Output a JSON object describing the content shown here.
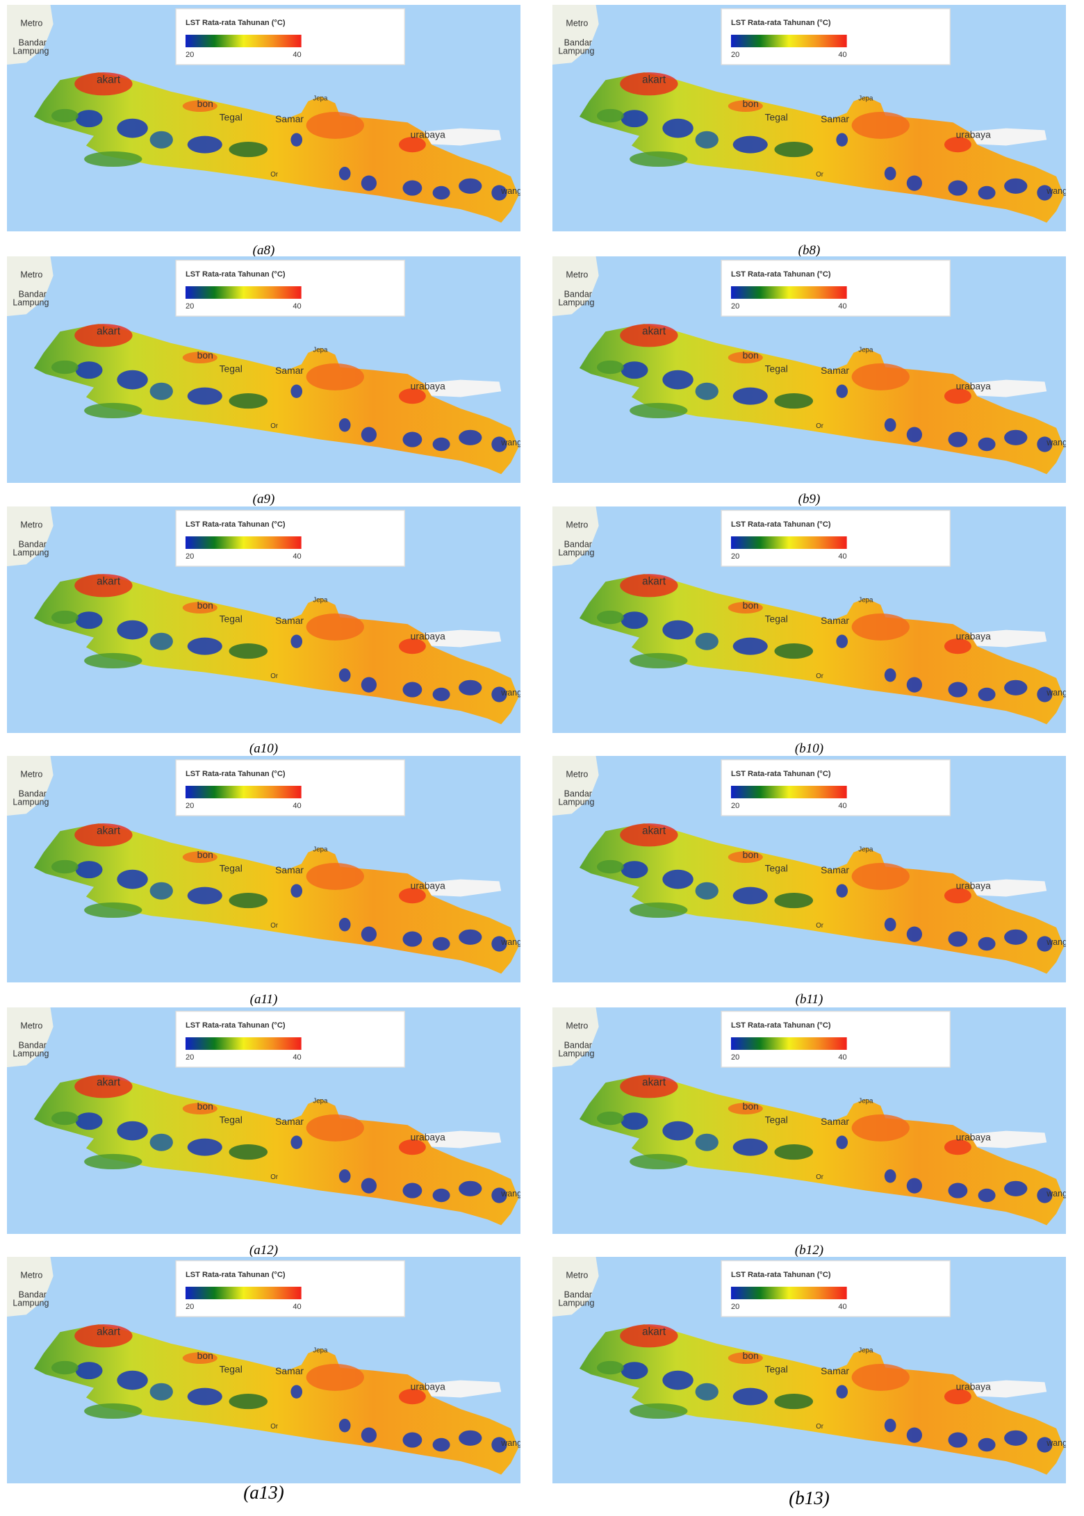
{
  "legend": {
    "title": "LST Rata-rata Tahunan (°C)",
    "ticks": [
      20,
      40
    ]
  },
  "place_labels": [
    "Metro",
    "Bandar",
    "Lampung",
    "akart",
    "bon",
    "Tegal",
    "Samar",
    "Jepa",
    "urabaya",
    "wang",
    "Or"
  ],
  "panels": [
    {
      "caption": "(a8)"
    },
    {
      "caption": "(b8)"
    },
    {
      "caption": "(a9)"
    },
    {
      "caption": "(b9)"
    },
    {
      "caption": "(a10)"
    },
    {
      "caption": "(b10)"
    },
    {
      "caption": "(a11)"
    },
    {
      "caption": "(b11)"
    },
    {
      "caption": "(a12)"
    },
    {
      "caption": "(b12)"
    },
    {
      "caption": "(a13)"
    },
    {
      "caption": "(b13)"
    }
  ]
}
